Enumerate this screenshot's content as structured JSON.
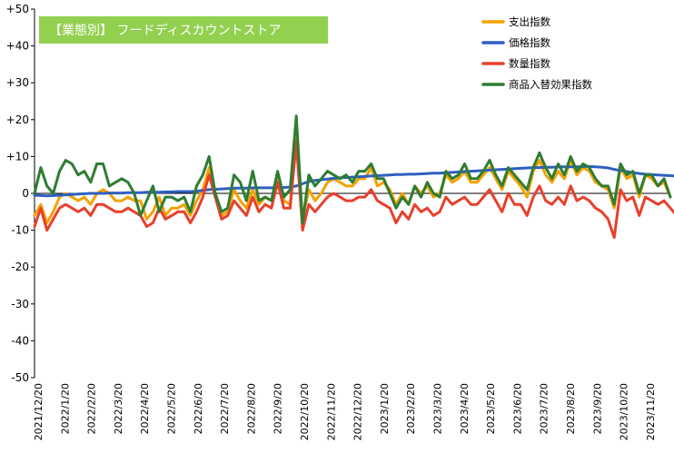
{
  "chart_data": {
    "type": "line",
    "title": "【業態別】 フードディスカウントストア",
    "title_bg_color": "#92d050",
    "ylim": [
      -50,
      50
    ],
    "y_ticks": [
      {
        "value": 50,
        "label": "+50"
      },
      {
        "value": 40,
        "label": "+40"
      },
      {
        "value": 30,
        "label": "+30"
      },
      {
        "value": 20,
        "label": "+20"
      },
      {
        "value": 10,
        "label": "+10"
      },
      {
        "value": 0,
        "label": "0"
      },
      {
        "value": -10,
        "label": "-10"
      },
      {
        "value": -20,
        "label": "-20"
      },
      {
        "value": -30,
        "label": "-30"
      },
      {
        "value": -40,
        "label": "-40"
      },
      {
        "value": -50,
        "label": "-50"
      }
    ],
    "x_labels": [
      "2021/12/20",
      "2022/1/20",
      "2022/2/20",
      "2022/3/20",
      "2022/4/20",
      "2022/5/20",
      "2022/6/20",
      "2022/7/20",
      "2022/8/20",
      "2022/9/20",
      "2022/10/20",
      "2022/11/20",
      "2022/12/20",
      "2023/1/20",
      "2023/2/20",
      "2023/3/20",
      "2023/4/20",
      "2023/5/20",
      "2023/6/20",
      "2023/7/20",
      "2023/8/20",
      "2023/9/20",
      "2023/10/20",
      "2023/11/20"
    ],
    "grid": false,
    "legend_position": "top-right",
    "series": [
      {
        "name": "支出指数",
        "color": "#f5a100",
        "values": [
          -6,
          -3,
          -8,
          -5,
          -1,
          0,
          -1,
          -2,
          -1,
          -3,
          0,
          1,
          0,
          -2,
          -2,
          -1,
          -2,
          -2,
          -7,
          -5,
          -1,
          -6,
          -4,
          -4,
          -3,
          -6,
          -2,
          1,
          7,
          -1,
          -6,
          -5,
          1,
          -2,
          -4,
          1,
          -3,
          -1,
          -2,
          5,
          -2,
          -3,
          15,
          -7,
          1,
          -2,
          0,
          3,
          4,
          3,
          2,
          2,
          4,
          4,
          7,
          2,
          3,
          1,
          -3,
          0,
          -3,
          2,
          0,
          2,
          -1,
          0,
          5,
          3,
          4,
          6,
          3,
          3,
          5,
          7,
          4,
          1,
          6,
          4,
          2,
          -1,
          6,
          9,
          5,
          3,
          6,
          4,
          9,
          5,
          7,
          6,
          3,
          2,
          1,
          -4,
          7,
          4,
          5,
          -1,
          5,
          4,
          2,
          3,
          -1
        ]
      },
      {
        "name": "価格指数",
        "color": "#2e5fc1",
        "values": [
          -0.5,
          -0.6,
          -0.7,
          -0.6,
          -0.5,
          -0.4,
          -0.3,
          -0.2,
          -0.1,
          0,
          0,
          0,
          0.1,
          0.1,
          0.1,
          0.2,
          0.2,
          0.2,
          0.3,
          0.3,
          0.3,
          0.4,
          0.4,
          0.5,
          0.5,
          0.5,
          0.6,
          0.8,
          1,
          1.1,
          1.2,
          1.3,
          1.4,
          1.4,
          1.4,
          1.5,
          1.5,
          1.5,
          1.5,
          1.6,
          1.6,
          1.7,
          2,
          2.6,
          3.2,
          3.5,
          3.7,
          3.9,
          4.1,
          4.2,
          4.3,
          4.4,
          4.5,
          4.6,
          4.7,
          4.8,
          4.9,
          5,
          5.1,
          5.1,
          5.2,
          5.2,
          5.3,
          5.4,
          5.5,
          5.5,
          5.6,
          5.7,
          5.8,
          5.9,
          6,
          6.1,
          6.2,
          6.3,
          6.4,
          6.5,
          6.6,
          6.7,
          6.8,
          6.9,
          7,
          7,
          7.1,
          7.1,
          7.2,
          7.2,
          7.2,
          7.2,
          7.3,
          7.3,
          7.2,
          7.1,
          6.9,
          6.5,
          6.2,
          5.9,
          5.6,
          5.4,
          5.2,
          5.1,
          5.0,
          4.9,
          4.8,
          4.7
        ]
      },
      {
        "name": "数量指数",
        "color": "#e8402c",
        "values": [
          -9,
          -4,
          -10,
          -7,
          -4,
          -3,
          -4,
          -5,
          -4,
          -6,
          -3,
          -3,
          -4,
          -5,
          -5,
          -4,
          -5,
          -6,
          -9,
          -8,
          -4,
          -7,
          -6,
          -5,
          -5,
          -8,
          -5,
          -1,
          5,
          -1,
          -7,
          -6,
          -2,
          -4,
          -6,
          -1,
          -5,
          -3,
          -4,
          3,
          -4,
          -4,
          14,
          -10,
          -3,
          -5,
          -3,
          -1,
          0,
          -1,
          -2,
          -2,
          -1,
          -1,
          1,
          -2,
          -3,
          -4,
          -8,
          -5,
          -7,
          -3,
          -5,
          -4,
          -6,
          -5,
          -1,
          -3,
          -2,
          -1,
          -3,
          -3,
          -1,
          1,
          -2,
          -5,
          0,
          -3,
          -3,
          -6,
          -1,
          2,
          -2,
          -3,
          -1,
          -3,
          2,
          -2,
          -1,
          -2,
          -4,
          -5,
          -7,
          -12,
          1,
          -2,
          -1,
          -6,
          -1,
          -2,
          -3,
          -2,
          -4,
          -6
        ]
      },
      {
        "name": "商品入替効果指数",
        "color": "#2e7d32",
        "values": [
          0,
          7,
          2,
          0,
          6,
          9,
          8,
          5,
          6,
          3,
          8,
          8,
          2,
          3,
          4,
          3,
          0,
          -6,
          -2,
          2,
          -5,
          -1,
          -1,
          -2,
          -1,
          -5,
          2,
          5,
          10,
          0,
          -5,
          -4,
          5,
          3,
          -2,
          6,
          -2,
          -1,
          -2,
          6,
          -1,
          1,
          21,
          -8,
          5,
          2,
          4,
          6,
          5,
          4,
          5,
          3,
          6,
          6,
          8,
          4,
          4,
          0,
          -4,
          -1,
          -3,
          2,
          -1,
          3,
          0,
          -1,
          6,
          4,
          5,
          8,
          4,
          4,
          6,
          9,
          5,
          2,
          7,
          5,
          3,
          1,
          7,
          11,
          7,
          4,
          8,
          5,
          10,
          6,
          8,
          7,
          4,
          2,
          2,
          -3,
          8,
          5,
          6,
          0,
          5,
          5,
          2,
          4,
          -1
        ]
      }
    ]
  }
}
